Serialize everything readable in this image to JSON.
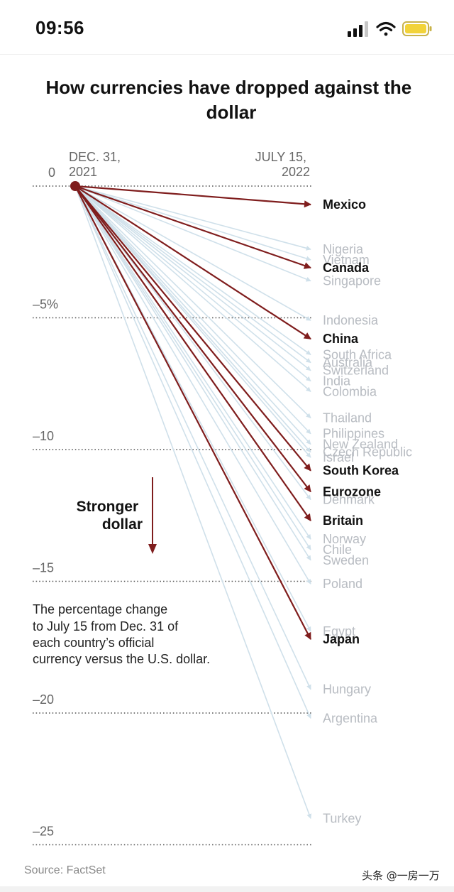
{
  "status_bar": {
    "time": "09:56"
  },
  "watermark": "头条 @一房一万",
  "chart_data": {
    "type": "slope",
    "title": "How currencies have dropped against the dollar",
    "x": [
      "DEC. 31, 2021",
      "JULY 15, 2022"
    ],
    "x_labels": [
      [
        "DEC. 31,",
        "2021"
      ],
      [
        "JULY 15,",
        "2022"
      ]
    ],
    "ylim": [
      -25,
      0
    ],
    "y_ticks": [
      {
        "value": 0,
        "label": "0"
      },
      {
        "value": -5,
        "label": "–5%"
      },
      {
        "value": -10,
        "label": "–10"
      },
      {
        "value": -15,
        "label": "–15"
      },
      {
        "value": -20,
        "label": "–20"
      },
      {
        "value": -25,
        "label": "–25"
      }
    ],
    "annotation": {
      "arrow_label": [
        "Stronger",
        "dollar"
      ],
      "description": [
        "The percentage change",
        "to July 15 from Dec. 31 of",
        "each country’s official",
        "currency versus the U.S. dollar."
      ]
    },
    "source": "Source: FactSet",
    "colors": {
      "highlight": "#7f1d1d",
      "muted_line": "#cfe0ea",
      "muted_text": "#b8bcc2",
      "grid": "#555555"
    },
    "series": [
      {
        "name": "Mexico",
        "value": -0.7,
        "highlight": true
      },
      {
        "name": "Nigeria",
        "value": -2.4,
        "highlight": false
      },
      {
        "name": "Vietnam",
        "value": -2.8,
        "highlight": false
      },
      {
        "name": "Canada",
        "value": -3.1,
        "highlight": true
      },
      {
        "name": "Singapore",
        "value": -3.6,
        "highlight": false
      },
      {
        "name": "Indonesia",
        "value": -5.1,
        "highlight": false
      },
      {
        "name": "China",
        "value": -5.8,
        "highlight": true
      },
      {
        "name": "South Africa",
        "value": -6.4,
        "highlight": false
      },
      {
        "name": "Australia",
        "value": -6.7,
        "highlight": false
      },
      {
        "name": "Switzerland",
        "value": -7.0,
        "highlight": false
      },
      {
        "name": "India",
        "value": -7.4,
        "highlight": false
      },
      {
        "name": "Colombia",
        "value": -7.8,
        "highlight": false
      },
      {
        "name": "Thailand",
        "value": -8.8,
        "highlight": false
      },
      {
        "name": "Philippines",
        "value": -9.4,
        "highlight": false
      },
      {
        "name": "New Zealand",
        "value": -9.8,
        "highlight": false
      },
      {
        "name": "Czech Republic",
        "value": -10.1,
        "highlight": false
      },
      {
        "name": "Israel",
        "value": -10.3,
        "highlight": false
      },
      {
        "name": "South Korea",
        "value": -10.8,
        "highlight": true
      },
      {
        "name": "Eurozone",
        "value": -11.6,
        "highlight": true
      },
      {
        "name": "Denmark",
        "value": -11.9,
        "highlight": false
      },
      {
        "name": "Britain",
        "value": -12.7,
        "highlight": true
      },
      {
        "name": "Norway",
        "value": -13.4,
        "highlight": false
      },
      {
        "name": "Chile",
        "value": -13.8,
        "highlight": false
      },
      {
        "name": "Sweden",
        "value": -14.2,
        "highlight": false
      },
      {
        "name": "Poland",
        "value": -15.1,
        "highlight": false
      },
      {
        "name": "Egypt",
        "value": -16.9,
        "highlight": false
      },
      {
        "name": "Japan",
        "value": -17.2,
        "highlight": true
      },
      {
        "name": "Hungary",
        "value": -19.1,
        "highlight": false
      },
      {
        "name": "Argentina",
        "value": -20.2,
        "highlight": false
      },
      {
        "name": "Turkey",
        "value": -24.0,
        "highlight": false
      }
    ]
  }
}
